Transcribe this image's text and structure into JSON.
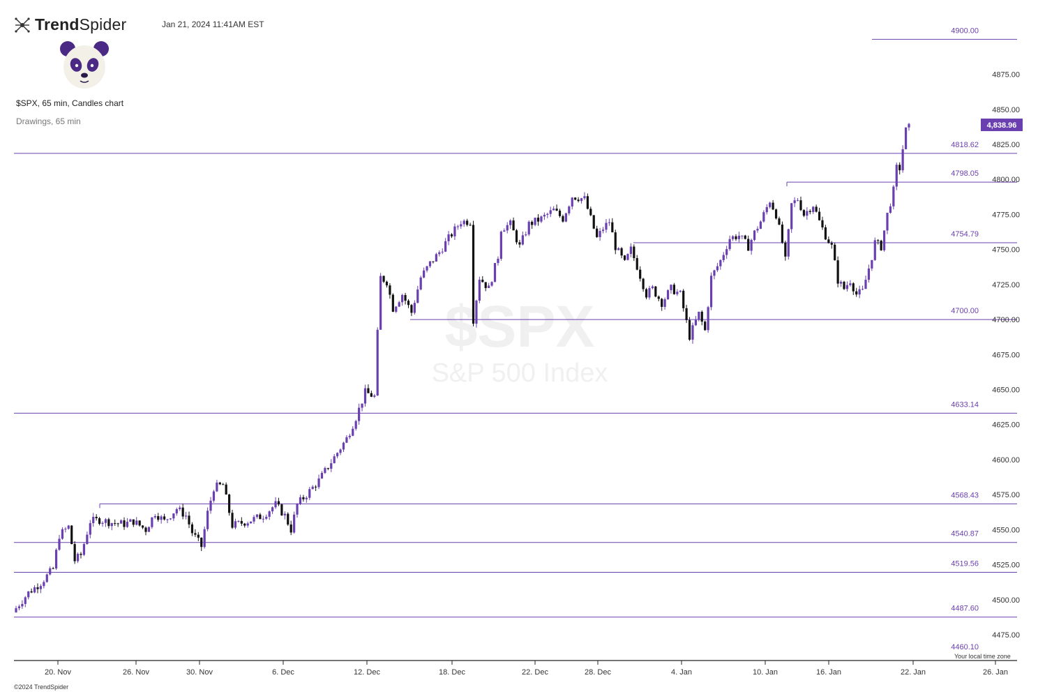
{
  "header": {
    "brand_bold": "Trend",
    "brand_regular": "Spider",
    "datetime": "Jan 21, 2024 11:41AM EST",
    "symbol_line": "$SPX, 65 min, Candles chart",
    "drawings_line": "Drawings, 65 min"
  },
  "footer": {
    "copyright": "©2024 TrendSpider",
    "timezone_note": "Your local time zone"
  },
  "icons": {
    "logo": "trendspider-logo-icon",
    "avatar": "panda-avatar-icon"
  },
  "colors": {
    "up": "#6a3fb0",
    "down": "#111111",
    "level": "#6a3fb0",
    "label": "#7c4dc4",
    "price_tag": "#6a3fb0"
  },
  "chart_data": {
    "type": "candlestick",
    "symbol": "$SPX",
    "interval": "65 min",
    "watermark": {
      "symbol": "$SPX",
      "name": "S&P 500 Index"
    },
    "y_ticks": [
      4475,
      4500,
      4525,
      4550,
      4575,
      4600,
      4625,
      4650,
      4675,
      4700,
      4725,
      4750,
      4775,
      4800,
      4825,
      4850,
      4875
    ],
    "y_tick_labels": [
      "4475.00",
      "4500.00",
      "4525.00",
      "4550.00",
      "4575.00",
      "4600.00",
      "4625.00",
      "4650.00",
      "4675.00",
      "4700.00",
      "4725.00",
      "4750.00",
      "4775.00",
      "4800.00",
      "4825.00",
      "4850.00",
      "4875.00"
    ],
    "x_ticks": [
      "20. Nov",
      "26. Nov",
      "30. Nov",
      "6. Dec",
      "12. Dec",
      "18. Dec",
      "22. Dec",
      "28. Dec",
      "4. Jan",
      "10. Jan",
      "16. Jan",
      "22. Jan",
      "26. Jan"
    ],
    "last_price": 4838.96,
    "last_price_label": "4,838.96",
    "levels": [
      {
        "value": 4900.0,
        "label": "4900.00",
        "span": "right"
      },
      {
        "value": 4818.62,
        "label": "4818.62",
        "span": "full"
      },
      {
        "value": 4798.05,
        "label": "4798.05",
        "span": "from-jan-11"
      },
      {
        "value": 4754.79,
        "label": "4754.79",
        "span": "from-jan-2"
      },
      {
        "value": 4700.0,
        "label": "4700.00",
        "span": "from-dec-15"
      },
      {
        "value": 4633.14,
        "label": "4633.14",
        "span": "full"
      },
      {
        "value": 4568.43,
        "label": "4568.43",
        "span": "from-nov-22"
      },
      {
        "value": 4540.87,
        "label": "4540.87",
        "span": "full"
      },
      {
        "value": 4519.56,
        "label": "4519.56",
        "span": "full"
      },
      {
        "value": 4487.6,
        "label": "4487.60",
        "span": "full"
      },
      {
        "value": 4460.1,
        "label": "4460.10",
        "span": "full"
      }
    ],
    "close_path": [
      [
        0,
        4494
      ],
      [
        4,
        4505
      ],
      [
        8,
        4512
      ],
      [
        12,
        4522
      ],
      [
        14,
        4546
      ],
      [
        17,
        4552
      ],
      [
        19,
        4528
      ],
      [
        21,
        4532
      ],
      [
        24,
        4556
      ],
      [
        27,
        4557
      ],
      [
        31,
        4555
      ],
      [
        35,
        4554
      ],
      [
        38,
        4556
      ],
      [
        42,
        4550
      ],
      [
        45,
        4562
      ],
      [
        48,
        4556
      ],
      [
        52,
        4565
      ],
      [
        55,
        4560
      ],
      [
        57,
        4548
      ],
      [
        60,
        4538
      ],
      [
        62,
        4562
      ],
      [
        64,
        4580
      ],
      [
        67,
        4582
      ],
      [
        70,
        4553
      ],
      [
        75,
        4556
      ],
      [
        80,
        4560
      ],
      [
        84,
        4568
      ],
      [
        87,
        4560
      ],
      [
        89,
        4550
      ],
      [
        91,
        4568
      ],
      [
        94,
        4575
      ],
      [
        98,
        4585
      ],
      [
        101,
        4595
      ],
      [
        104,
        4605
      ],
      [
        107,
        4615
      ],
      [
        110,
        4630
      ],
      [
        113,
        4648
      ],
      [
        116,
        4645
      ],
      [
        117,
        4690
      ],
      [
        118,
        4730
      ],
      [
        120,
        4727
      ],
      [
        122,
        4708
      ],
      [
        125,
        4718
      ],
      [
        128,
        4705
      ],
      [
        131,
        4730
      ],
      [
        134,
        4740
      ],
      [
        137,
        4748
      ],
      [
        140,
        4758
      ],
      [
        144,
        4770
      ],
      [
        147,
        4770
      ],
      [
        148,
        4700
      ],
      [
        150,
        4730
      ],
      [
        153,
        4722
      ],
      [
        156,
        4745
      ],
      [
        157,
        4765
      ],
      [
        160,
        4768
      ],
      [
        163,
        4752
      ],
      [
        166,
        4768
      ],
      [
        170,
        4772
      ],
      [
        174,
        4778
      ],
      [
        177,
        4772
      ],
      [
        180,
        4788
      ],
      [
        184,
        4786
      ],
      [
        186,
        4772
      ],
      [
        188,
        4758
      ],
      [
        190,
        4765
      ],
      [
        192,
        4770
      ],
      [
        194,
        4752
      ],
      [
        197,
        4740
      ],
      [
        199,
        4750
      ],
      [
        201,
        4738
      ],
      [
        204,
        4718
      ],
      [
        206,
        4722
      ],
      [
        209,
        4712
      ],
      [
        212,
        4722
      ],
      [
        215,
        4718
      ],
      [
        218,
        4688
      ],
      [
        221,
        4704
      ],
      [
        223,
        4692
      ],
      [
        225,
        4730
      ],
      [
        228,
        4742
      ],
      [
        231,
        4758
      ],
      [
        234,
        4760
      ],
      [
        237,
        4752
      ],
      [
        239,
        4762
      ],
      [
        241,
        4770
      ],
      [
        244,
        4785
      ],
      [
        246,
        4775
      ],
      [
        248,
        4755
      ],
      [
        249,
        4742
      ],
      [
        251,
        4782
      ],
      [
        253,
        4786
      ],
      [
        255,
        4775
      ],
      [
        258,
        4782
      ],
      [
        260,
        4770
      ],
      [
        262,
        4760
      ],
      [
        264,
        4752
      ],
      [
        266,
        4728
      ],
      [
        268,
        4722
      ],
      [
        270,
        4728
      ],
      [
        272,
        4718
      ],
      [
        274,
        4720
      ],
      [
        277,
        4745
      ],
      [
        278,
        4755
      ],
      [
        280,
        4752
      ],
      [
        282,
        4775
      ],
      [
        284,
        4792
      ],
      [
        285,
        4808
      ],
      [
        286,
        4808
      ],
      [
        287,
        4822
      ],
      [
        288,
        4835
      ],
      [
        289,
        4837
      ]
    ]
  }
}
